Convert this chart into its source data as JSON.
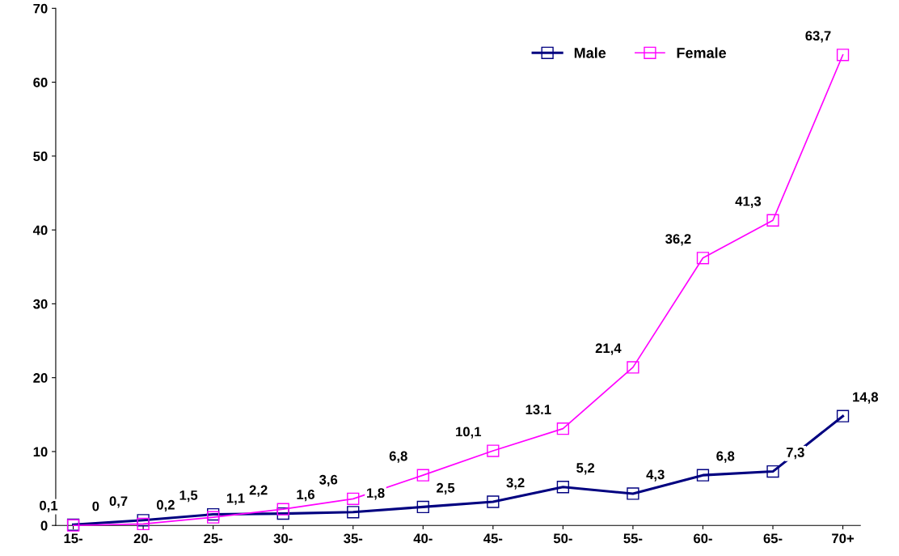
{
  "chart_data": {
    "type": "line",
    "categories": [
      "15-",
      "20-",
      "25-",
      "30-",
      "35-",
      "40-",
      "45-",
      "50-",
      "55-",
      "60-",
      "65-",
      "70+"
    ],
    "series": [
      {
        "name": "Male",
        "color": "#000080",
        "values": [
          0.1,
          0.7,
          1.5,
          1.6,
          1.8,
          2.5,
          3.2,
          5.2,
          4.3,
          6.8,
          7.3,
          14.8
        ],
        "value_labels": [
          "0,1",
          "0,7",
          "1,5",
          "1,6",
          "1,8",
          "2,5",
          "3,2",
          "5,2",
          "4,3",
          "6,8",
          "7,3",
          "14,8"
        ]
      },
      {
        "name": "Female",
        "color": "#ff00ff",
        "values": [
          0,
          0.2,
          1.1,
          2.2,
          3.6,
          6.8,
          10.1,
          13.1,
          21.4,
          36.2,
          41.3,
          63.7
        ],
        "value_labels": [
          "0",
          "0,2",
          "1,1",
          "2,2",
          "3,6",
          "6,8",
          "10,1",
          "13.1",
          "21,4",
          "36,2",
          "41,3",
          "63,7"
        ]
      }
    ],
    "ylim": [
      0,
      70
    ],
    "yticks": [
      0,
      10,
      20,
      30,
      40,
      50,
      60,
      70
    ],
    "grid": false,
    "legend": "top right",
    "marker": "square",
    "line_style": "solid"
  }
}
